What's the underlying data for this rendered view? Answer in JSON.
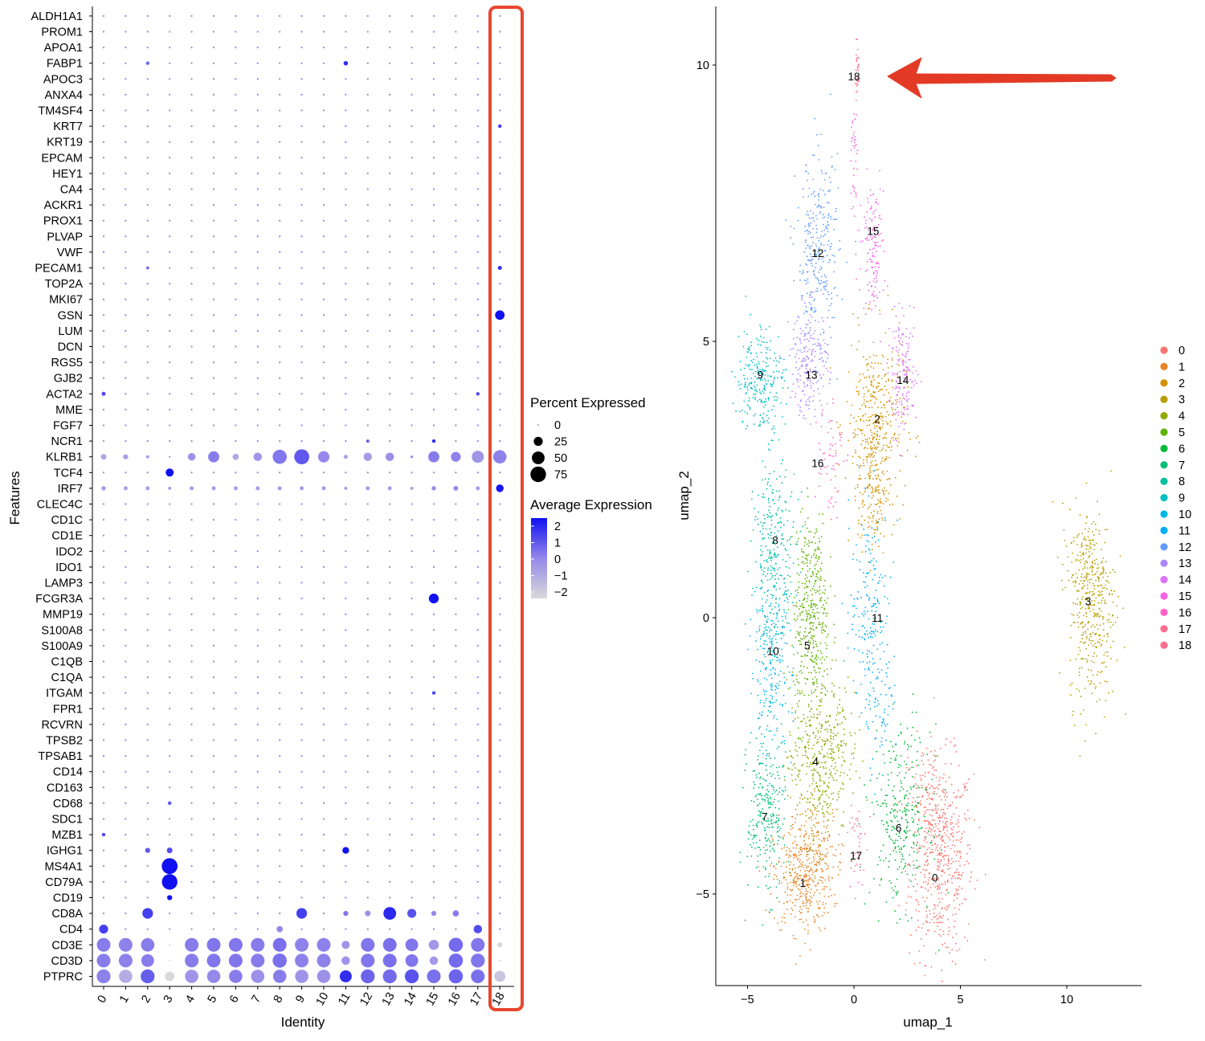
{
  "colors": {
    "low": "#d9d9d9",
    "high": "#1010f0",
    "highlight": "#e8472e",
    "arrow": "#e33a25",
    "axis": "#000000"
  },
  "chart_data": [
    {
      "type": "dotplot",
      "xlabel": "Identity",
      "ylabel": "Features",
      "categories": [
        "0",
        "1",
        "2",
        "3",
        "4",
        "5",
        "6",
        "7",
        "8",
        "9",
        "10",
        "11",
        "12",
        "13",
        "14",
        "15",
        "16",
        "17",
        "18"
      ],
      "features": [
        "ALDH1A1",
        "PROM1",
        "APOA1",
        "FABP1",
        "APOC3",
        "ANXA4",
        "TM4SF4",
        "KRT7",
        "KRT19",
        "EPCAM",
        "HEY1",
        "CA4",
        "ACKR1",
        "PROX1",
        "PLVAP",
        "VWF",
        "PECAM1",
        "TOP2A",
        "MKI67",
        "GSN",
        "LUM",
        "DCN",
        "RGS5",
        "GJB2",
        "ACTA2",
        "MME",
        "FGF7",
        "NCR1",
        "KLRB1",
        "TCF4",
        "IRF7",
        "CLEC4C",
        "CD1C",
        "CD1E",
        "IDO2",
        "IDO1",
        "LAMP3",
        "FCGR3A",
        "MMP19",
        "S100A8",
        "S100A9",
        "C1QB",
        "C1QA",
        "ITGAM",
        "FPR1",
        "RCVRN",
        "TPSB2",
        "TPSAB1",
        "CD14",
        "CD163",
        "CD68",
        "SDC1",
        "MZB1",
        "IGHG1",
        "MS4A1",
        "CD79A",
        "CD19",
        "CD8A",
        "CD4",
        "CD3E",
        "CD3D",
        "PTPRC"
      ],
      "default_percent": 1,
      "default_expression": 0,
      "notable": [
        {
          "feature": "FABP1",
          "cluster": "11",
          "percent": 6,
          "expression": 1.5
        },
        {
          "feature": "FABP1",
          "cluster": "2",
          "percent": 4,
          "expression": 0.5
        },
        {
          "feature": "ACTA2",
          "cluster": "0",
          "percent": 5,
          "expression": 1.0
        },
        {
          "feature": "ACTA2",
          "cluster": "17",
          "percent": 4,
          "expression": 1.0
        },
        {
          "feature": "PECAM1",
          "cluster": "18",
          "percent": 5,
          "expression": 1.5
        },
        {
          "feature": "PECAM1",
          "cluster": "2",
          "percent": 3,
          "expression": 0.5
        },
        {
          "feature": "GSN",
          "cluster": "18",
          "percent": 28,
          "expression": 2.2
        },
        {
          "feature": "KRT7",
          "cluster": "18",
          "percent": 4,
          "expression": 1.2
        },
        {
          "feature": "TCF4",
          "cluster": "3",
          "percent": 20,
          "expression": 2.0
        },
        {
          "feature": "FCGR3A",
          "cluster": "15",
          "percent": 30,
          "expression": 2.3
        },
        {
          "feature": "MZB1",
          "cluster": "0",
          "percent": 4,
          "expression": 1.0
        },
        {
          "feature": "NCR1",
          "cluster": "15",
          "percent": 4,
          "expression": 1.5
        },
        {
          "feature": "NCR1",
          "cluster": "12",
          "percent": 3,
          "expression": 0.8
        },
        {
          "feature": "ITGAM",
          "cluster": "15",
          "percent": 4,
          "expression": 1.0
        },
        {
          "feature": "CD68",
          "cluster": "3",
          "percent": 4,
          "expression": 0.8
        },
        {
          "feature": "CD19",
          "cluster": "3",
          "percent": 8,
          "expression": 2.0
        },
        {
          "feature": "MS4A1",
          "cluster": "3",
          "percent": 78,
          "expression": 2.5
        },
        {
          "feature": "CD79A",
          "cluster": "3",
          "percent": 75,
          "expression": 2.5
        },
        {
          "feature": "IGHG1",
          "cluster": "11",
          "percent": 14,
          "expression": 2.0
        },
        {
          "feature": "IGHG1",
          "cluster": "3",
          "percent": 10,
          "expression": 1.0
        },
        {
          "feature": "IGHG1",
          "cluster": "2",
          "percent": 8,
          "expression": 0.8
        },
        {
          "feature": "CD8A",
          "cluster": "2",
          "percent": 35,
          "expression": 1.2
        },
        {
          "feature": "CD8A",
          "cluster": "9",
          "percent": 35,
          "expression": 1.2
        },
        {
          "feature": "CD8A",
          "cluster": "13",
          "percent": 50,
          "expression": 1.6
        },
        {
          "feature": "CD8A",
          "cluster": "14",
          "percent": 25,
          "expression": 0.9
        },
        {
          "feature": "CD8A",
          "cluster": "16",
          "percent": 12,
          "expression": 0.2
        },
        {
          "feature": "CD8A",
          "cluster": "12",
          "percent": 10,
          "expression": -0.2
        },
        {
          "feature": "CD8A",
          "cluster": "11",
          "percent": 8,
          "expression": 0.3
        },
        {
          "feature": "CD8A",
          "cluster": "15",
          "percent": 8,
          "expression": 0.0
        },
        {
          "feature": "CD4",
          "cluster": "0",
          "percent": 25,
          "expression": 1.2
        },
        {
          "feature": "CD4",
          "cluster": "17",
          "percent": 22,
          "expression": 1.0
        },
        {
          "feature": "CD4",
          "cluster": "8",
          "percent": 12,
          "expression": 0.0
        },
        {
          "feature": "IRF7",
          "cluster": "18",
          "percent": 18,
          "expression": 1.9
        }
      ],
      "rows": {
        "KLRB1": {
          "percent": [
            10,
            8,
            3,
            1,
            18,
            38,
            12,
            22,
            62,
            70,
            40,
            5,
            22,
            22,
            2,
            38,
            30,
            45,
            55
          ],
          "expression": [
            -0.8,
            -0.6,
            -0.5,
            0,
            -0.2,
            0.2,
            -0.8,
            -0.3,
            0.3,
            0.8,
            0.0,
            -0.6,
            -0.5,
            -0.2,
            0,
            0.2,
            0.1,
            -0.3,
            0.1
          ]
        },
        "IRF7": {
          "percent": [
            6,
            5,
            5,
            3,
            5,
            5,
            5,
            5,
            5,
            5,
            5,
            3,
            5,
            5,
            3,
            6,
            7,
            5,
            18
          ],
          "expression": [
            -0.5,
            -0.6,
            -0.6,
            -0.5,
            -0.5,
            -0.5,
            -0.5,
            -0.5,
            -0.5,
            -0.5,
            -0.5,
            -0.5,
            -0.5,
            -0.5,
            -0.5,
            -0.2,
            0.0,
            -0.5,
            1.9
          ]
        },
        "CD3E": {
          "percent": [
            58,
            58,
            56,
            1,
            58,
            58,
            58,
            58,
            58,
            58,
            58,
            20,
            58,
            58,
            50,
            32,
            62,
            58,
            8
          ],
          " expression_note": "",
          "expression": [
            0.2,
            0.1,
            0.2,
            -2,
            0.2,
            0.3,
            0.3,
            0.2,
            0.4,
            0.1,
            0.1,
            -0.3,
            0.3,
            0.4,
            0.3,
            -0.4,
            0.5,
            0.3,
            -2
          ]
        },
        "CD3D": {
          "percent": [
            58,
            58,
            50,
            1,
            58,
            58,
            58,
            58,
            62,
            58,
            58,
            22,
            58,
            58,
            50,
            22,
            62,
            60,
            1
          ],
          "expression": [
            0.2,
            0.1,
            0.2,
            -2,
            0.2,
            0.3,
            0.3,
            0.2,
            0.4,
            0.1,
            0.1,
            -0.3,
            0.3,
            0.4,
            0.3,
            -0.4,
            0.5,
            0.3,
            -2
          ]
        },
        "PTPRC": {
          "percent": [
            60,
            55,
            60,
            28,
            55,
            55,
            55,
            55,
            55,
            55,
            55,
            45,
            60,
            60,
            60,
            58,
            62,
            58,
            38
          ],
          "expression": [
            0.1,
            -0.9,
            0.7,
            -2.0,
            -0.3,
            0.0,
            0.2,
            -0.2,
            0.2,
            -0.3,
            -0.2,
            1.5,
            0.6,
            0.5,
            0.9,
            0.4,
            0.6,
            0.4,
            -1.5
          ]
        }
      }
    },
    {
      "type": "scatter",
      "xlabel": "umap_1",
      "ylabel": "umap_2",
      "xlim": [
        -7.2,
        13.3
      ],
      "ylim": [
        -6.65,
        11.05
      ],
      "xticks": [
        "-5",
        "0",
        "5",
        "10"
      ],
      "xticks_values": [
        -5,
        0,
        5,
        10
      ],
      "yticks": [
        "-5",
        "0",
        "5",
        "10"
      ],
      "yticks_values": [
        -5,
        0,
        5,
        10
      ],
      "clusters": [
        "0",
        "1",
        "2",
        "3",
        "4",
        "5",
        "6",
        "7",
        "8",
        "9",
        "10",
        "11",
        "12",
        "13",
        "14",
        "15",
        "16",
        "17",
        "18"
      ],
      "cluster_colors": [
        "#F8766D",
        "#E88526",
        "#D39200",
        "#B79F00",
        "#93AA00",
        "#5EB300",
        "#00BA38",
        "#00BF74",
        "#00C19F",
        "#00BFC4",
        "#00B9E3",
        "#00ADFA",
        "#619CFF",
        "#AE87FF",
        "#DB72FB",
        "#F564E3",
        "#FF61C3",
        "#FF6C91",
        "#FF6C91"
      ],
      "cluster_label_positions": [
        {
          "label": "0",
          "x": 3.8,
          "y": -4.7
        },
        {
          "label": "1",
          "x": -2.4,
          "y": -4.8
        },
        {
          "label": "2",
          "x": 1.1,
          "y": 3.6
        },
        {
          "label": "3",
          "x": 11.0,
          "y": 0.3
        },
        {
          "label": "4",
          "x": -1.8,
          "y": -2.6
        },
        {
          "label": "5",
          "x": -2.2,
          "y": -0.5
        },
        {
          "label": "6",
          "x": 2.1,
          "y": -3.8
        },
        {
          "label": "7",
          "x": -4.2,
          "y": -3.6
        },
        {
          "label": "8",
          "x": -3.7,
          "y": 1.4
        },
        {
          "label": "9",
          "x": -4.4,
          "y": 4.4
        },
        {
          "label": "10",
          "x": -3.8,
          "y": -0.6
        },
        {
          "label": "11",
          "x": 1.1,
          "y": 0.0
        },
        {
          "label": "12",
          "x": -1.7,
          "y": 6.6
        },
        {
          "label": "13",
          "x": -2.0,
          "y": 4.4
        },
        {
          "label": "14",
          "x": 2.3,
          "y": 4.3
        },
        {
          "label": "15",
          "x": 0.9,
          "y": 7.0
        },
        {
          "label": "16",
          "x": -1.7,
          "y": 2.8
        },
        {
          "label": "17",
          "x": 0.1,
          "y": -4.3
        },
        {
          "label": "18",
          "x": 0.0,
          "y": 9.8
        }
      ],
      "annotation": "red arrow pointing to cluster 18"
    }
  ],
  "legend": {
    "percent_title": "Percent Expressed",
    "percent_values": [
      "0",
      "25",
      "50",
      "75"
    ],
    "expression_title": "Average Expression",
    "expression_ticks": [
      "2",
      "1",
      "0",
      "−1",
      "−2"
    ]
  }
}
